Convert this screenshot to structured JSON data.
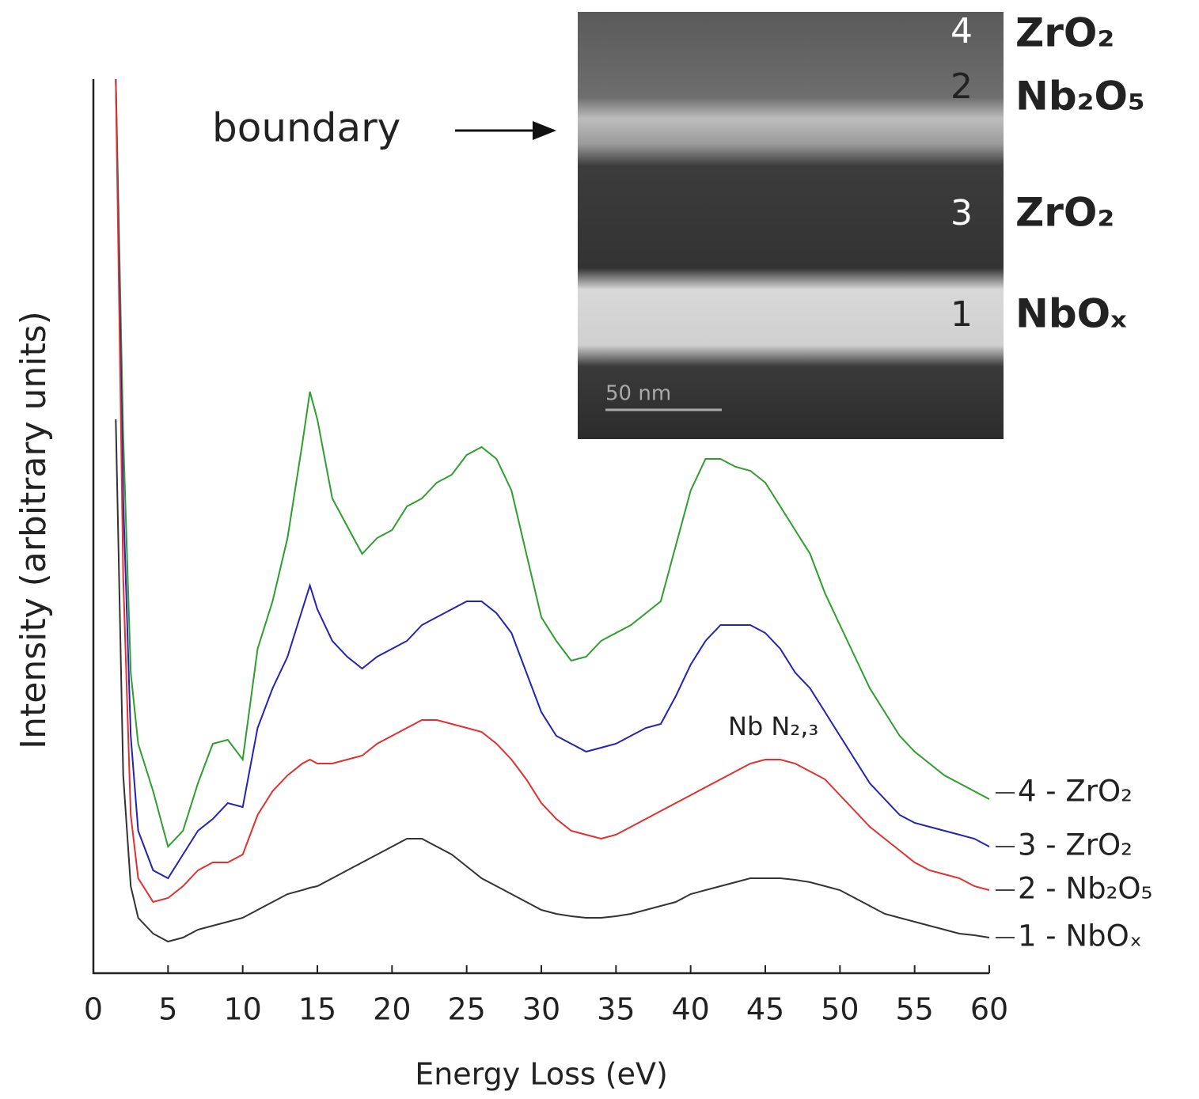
{
  "chart_data": {
    "type": "line",
    "xlabel": "Energy Loss (eV)",
    "ylabel": "Intensity (arbitrary units)",
    "x": [
      1.5,
      2,
      2.5,
      3,
      4,
      5,
      6,
      7,
      8,
      9,
      10,
      11,
      12,
      13,
      14,
      14.5,
      15,
      16,
      17,
      18,
      19,
      20,
      21,
      22,
      23,
      24,
      25,
      26,
      27,
      28,
      29,
      30,
      31,
      32,
      33,
      34,
      35,
      36,
      37,
      38,
      39,
      40,
      41,
      42,
      43,
      44,
      45,
      46,
      47,
      48,
      49,
      50,
      51,
      52,
      53,
      54,
      55,
      56,
      57,
      58,
      59,
      60
    ],
    "xlim": [
      0,
      60
    ],
    "xticks": [
      0,
      5,
      10,
      15,
      20,
      25,
      30,
      35,
      40,
      45,
      50,
      55,
      60
    ],
    "ylim": [
      0,
      1130
    ],
    "series": [
      {
        "name": "4 - ZrO₂",
        "color": "#2e9e2e",
        "values": [
          1130,
          680,
          380,
          290,
          230,
          160,
          180,
          240,
          290,
          295,
          270,
          410,
          470,
          550,
          670,
          735,
          700,
          600,
          565,
          530,
          550,
          560,
          590,
          600,
          620,
          630,
          655,
          665,
          650,
          610,
          530,
          450,
          420,
          395,
          400,
          420,
          430,
          440,
          455,
          470,
          540,
          610,
          650,
          650,
          640,
          635,
          620,
          590,
          560,
          530,
          480,
          440,
          400,
          360,
          330,
          300,
          280,
          265,
          250,
          240,
          230,
          220
        ]
      },
      {
        "name": "3 - ZrO₂",
        "color": "#2323b0",
        "values": [
          1130,
          600,
          300,
          180,
          130,
          120,
          150,
          180,
          195,
          215,
          210,
          310,
          360,
          400,
          460,
          490,
          460,
          420,
          400,
          385,
          400,
          410,
          420,
          440,
          450,
          460,
          470,
          470,
          455,
          430,
          380,
          330,
          300,
          290,
          280,
          285,
          290,
          300,
          310,
          315,
          350,
          390,
          420,
          440,
          440,
          440,
          430,
          410,
          380,
          360,
          330,
          300,
          270,
          240,
          220,
          200,
          190,
          185,
          180,
          175,
          170,
          160
        ]
      },
      {
        "name": "2 - Nb₂O₅",
        "color": "#e03030",
        "values": [
          1130,
          500,
          200,
          120,
          90,
          95,
          110,
          130,
          140,
          140,
          150,
          200,
          230,
          250,
          265,
          270,
          265,
          265,
          270,
          275,
          290,
          300,
          310,
          320,
          320,
          315,
          310,
          305,
          290,
          270,
          245,
          215,
          195,
          180,
          175,
          170,
          175,
          185,
          195,
          205,
          215,
          225,
          235,
          245,
          255,
          265,
          270,
          270,
          265,
          255,
          245,
          225,
          205,
          185,
          170,
          155,
          140,
          130,
          125,
          120,
          110,
          105
        ]
      },
      {
        "name": "1 - NbOₓ",
        "color": "#333333",
        "values": [
          700,
          250,
          110,
          70,
          50,
          40,
          45,
          55,
          60,
          65,
          70,
          80,
          90,
          100,
          105,
          108,
          110,
          120,
          130,
          140,
          150,
          160,
          170,
          170,
          160,
          150,
          135,
          120,
          110,
          100,
          90,
          80,
          75,
          72,
          70,
          70,
          72,
          75,
          80,
          85,
          90,
          100,
          105,
          110,
          115,
          120,
          120,
          120,
          118,
          115,
          110,
          105,
          95,
          85,
          75,
          70,
          65,
          60,
          55,
          50,
          48,
          45
        ]
      }
    ],
    "annotations": [
      "Nb N₂,₃",
      "boundary"
    ],
    "inset": {
      "layers": [
        {
          "number": "4",
          "label": "ZrO₂"
        },
        {
          "number": "2",
          "label": "Nb₂O₅"
        },
        {
          "number": "3",
          "label": "ZrO₂"
        },
        {
          "number": "1",
          "label": "NbOₓ"
        }
      ],
      "scale_bar": "50 nm"
    }
  }
}
